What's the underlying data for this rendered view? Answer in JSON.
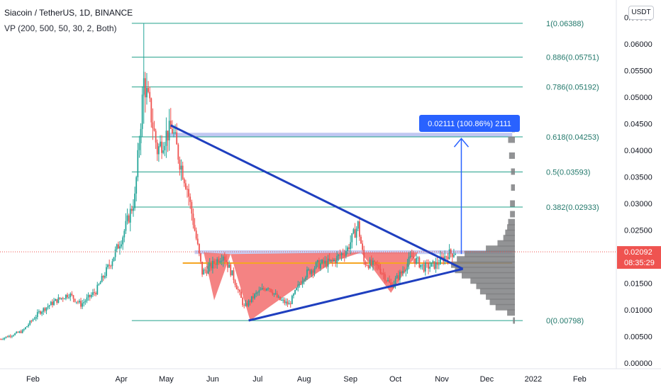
{
  "header": {
    "title": "Siacoin / TetherUS, 1D, BINANCE",
    "indicator": "VP (200, 500, 50, 30, 2, Both)",
    "currency": "USDT"
  },
  "price_axis": {
    "ticks": [
      "0.06500",
      "0.06000",
      "0.05500",
      "0.05000",
      "0.04500",
      "0.04000",
      "0.03500",
      "0.03000",
      "0.02500",
      "0.02000",
      "0.01500",
      "0.01000",
      "0.00500",
      "0.00000"
    ],
    "current_price": "0.02092",
    "countdown": "08:35:29"
  },
  "time_axis": {
    "labels": [
      "Feb",
      "Apr",
      "May",
      "Jun",
      "Jul",
      "Aug",
      "Sep",
      "Oct",
      "Nov",
      "Dec",
      "2022",
      "Feb"
    ]
  },
  "fibonacci": {
    "levels": [
      {
        "label": "1(0.06388)",
        "price": 0.06388
      },
      {
        "label": "0.886(0.05751)",
        "price": 0.05751
      },
      {
        "label": "0.786(0.05192)",
        "price": 0.05192
      },
      {
        "label": "0.618(0.04253)",
        "price": 0.04253
      },
      {
        "label": "0.5(0.03593)",
        "price": 0.03593
      },
      {
        "label": "0.382(0.02933)",
        "price": 0.02933
      },
      {
        "label": "0(0.00798)",
        "price": 0.00798
      }
    ]
  },
  "measure": {
    "label": "0.02111 (100.86%) 2111"
  },
  "colors": {
    "up": "#26a69a",
    "down": "#ef5350",
    "fib": "#22a08a",
    "trendline": "#1f3fbf",
    "neckline": "#f5a623",
    "pattern_fill": "#f26d6d",
    "volume_profile": "#7f8083",
    "zone": "#8e9be8",
    "price_badge": "#ef5350",
    "measure_badge": "#2962ff"
  },
  "chart_data": {
    "type": "candlestick",
    "symbol": "SCUSDT",
    "ylim": [
      0.0,
      0.066
    ],
    "x_range": [
      "2021-01-10",
      "2022-02-25"
    ],
    "close_path": [
      [
        "2021-01-10",
        0.0045
      ],
      [
        "2021-01-25",
        0.006
      ],
      [
        "2021-02-05",
        0.0095
      ],
      [
        "2021-02-15",
        0.0115
      ],
      [
        "2021-02-25",
        0.013
      ],
      [
        "2021-03-05",
        0.011
      ],
      [
        "2021-03-15",
        0.0135
      ],
      [
        "2021-03-25",
        0.019
      ],
      [
        "2021-04-02",
        0.024
      ],
      [
        "2021-04-10",
        0.031
      ],
      [
        "2021-04-16",
        0.053
      ],
      [
        "2021-04-20",
        0.048
      ],
      [
        "2021-04-25",
        0.04
      ],
      [
        "2021-05-01",
        0.043
      ],
      [
        "2021-05-05",
        0.044
      ],
      [
        "2021-05-10",
        0.038
      ],
      [
        "2021-05-15",
        0.033
      ],
      [
        "2021-05-20",
        0.025
      ],
      [
        "2021-05-25",
        0.017
      ],
      [
        "2021-06-01",
        0.0185
      ],
      [
        "2021-06-08",
        0.0205
      ],
      [
        "2021-06-15",
        0.016
      ],
      [
        "2021-06-22",
        0.0105
      ],
      [
        "2021-06-30",
        0.013
      ],
      [
        "2021-07-08",
        0.0145
      ],
      [
        "2021-07-15",
        0.012
      ],
      [
        "2021-07-22",
        0.011
      ],
      [
        "2021-08-01",
        0.0165
      ],
      [
        "2021-08-10",
        0.0185
      ],
      [
        "2021-08-20",
        0.019
      ],
      [
        "2021-08-30",
        0.0215
      ],
      [
        "2021-09-06",
        0.026
      ],
      [
        "2021-09-10",
        0.019
      ],
      [
        "2021-09-20",
        0.018
      ],
      [
        "2021-09-28",
        0.0145
      ],
      [
        "2021-10-05",
        0.017
      ],
      [
        "2021-10-12",
        0.02
      ],
      [
        "2021-10-20",
        0.018
      ],
      [
        "2021-10-28",
        0.0185
      ],
      [
        "2021-11-05",
        0.0205
      ],
      [
        "2021-11-10",
        0.0209
      ]
    ],
    "fib_levels": [
      0.06388,
      0.05751,
      0.05192,
      0.04253,
      0.03593,
      0.02933,
      0.00798
    ],
    "neckline": 0.0188,
    "resistance_zone": [
      0.0425,
      0.0433
    ],
    "lower_zone": [
      0.0205,
      0.0212
    ],
    "trendline_down": [
      [
        "2021-05-04",
        0.0447
      ],
      [
        "2021-11-15",
        0.0177
      ]
    ],
    "trendline_up": [
      [
        "2021-06-25",
        0.008
      ],
      [
        "2021-11-15",
        0.0177
      ]
    ],
    "projection_arrow": [
      [
        "2021-11-14",
        0.0205
      ],
      [
        "2021-11-14",
        0.0425
      ]
    ],
    "volume_profile": [
      [
        0.008,
        2
      ],
      [
        0.0095,
        8
      ],
      [
        0.0105,
        20
      ],
      [
        0.0115,
        26
      ],
      [
        0.0125,
        30
      ],
      [
        0.0135,
        36
      ],
      [
        0.0145,
        40
      ],
      [
        0.0155,
        46
      ],
      [
        0.0165,
        55
      ],
      [
        0.0175,
        62
      ],
      [
        0.0185,
        66
      ],
      [
        0.0195,
        60
      ],
      [
        0.0205,
        52
      ],
      [
        0.0215,
        30
      ],
      [
        0.0225,
        18
      ],
      [
        0.0235,
        12
      ],
      [
        0.0245,
        10
      ],
      [
        0.0255,
        8
      ],
      [
        0.0265,
        7
      ],
      [
        0.028,
        5
      ],
      [
        0.03,
        5
      ],
      [
        0.033,
        4
      ],
      [
        0.036,
        4
      ],
      [
        0.039,
        6
      ],
      [
        0.042,
        7
      ],
      [
        0.044,
        3
      ]
    ]
  }
}
